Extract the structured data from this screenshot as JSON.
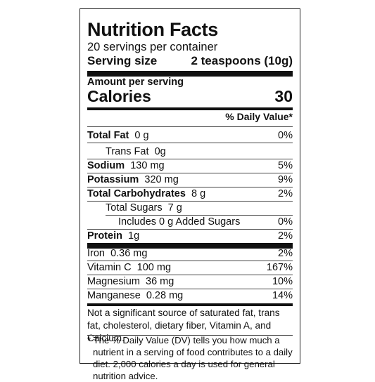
{
  "label": {
    "title": "Nutrition Facts",
    "servings": "20 servings per container",
    "serving_size_label": "Serving size",
    "serving_size_value": "2 teaspoons (10g)",
    "amount_per_serving": "Amount per serving",
    "calories_label": "Calories",
    "calories_value": "30",
    "daily_value_header": "% Daily Value*",
    "nutrients": [
      {
        "name": "Total Fat",
        "amount": "0 g",
        "dv": "0%"
      },
      {
        "name": "Trans Fat",
        "amount": "0g",
        "dv": ""
      },
      {
        "name": "Sodium",
        "amount": "130 mg",
        "dv": "5%"
      },
      {
        "name": "Potassium",
        "amount": "320 mg",
        "dv": "9%"
      },
      {
        "name": "Total Carbohydrates",
        "amount": "8 g",
        "dv": "2%"
      },
      {
        "name": "Total Sugars",
        "amount": "7 g",
        "dv": ""
      },
      {
        "name": "Includes 0 g Added Sugars",
        "amount": "",
        "dv": "0%"
      },
      {
        "name": "Protein",
        "amount": "1g",
        "dv": "2%"
      }
    ],
    "vitamins": [
      {
        "name": "Iron",
        "amount": "0.36 mg",
        "dv": "2%"
      },
      {
        "name": "Vitamin C",
        "amount": "100 mg",
        "dv": "167%"
      },
      {
        "name": "Magnesium",
        "amount": "36 mg",
        "dv": "10%"
      },
      {
        "name": "Manganese",
        "amount": "0.28 mg",
        "dv": "14%"
      }
    ],
    "not_significant_note": "Not a significant source of saturated fat, trans fat, cholesterol, dietary fiber, Vitamin A, and Calcium.",
    "footnote": "* The % Daily Value (DV) tells you how much a nutrient in a serving of food contributes to a daily diet. 2,000 calories a day is used for general nutrition advice."
  }
}
